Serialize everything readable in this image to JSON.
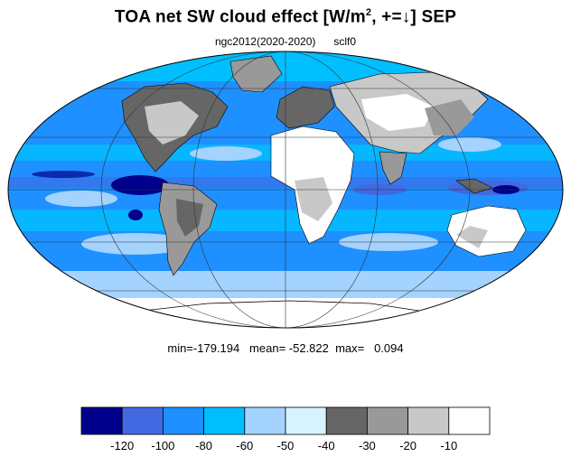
{
  "title": {
    "main": "TOA net SW cloud effect [W/m",
    "superscript": "2",
    "suffix": ", +=↓]  SEP"
  },
  "subtitle": {
    "case": "ngc2012(2020-2020)",
    "variable": "sclf0"
  },
  "stats": {
    "text": "min=-179.194   mean= -52.822  max=   0.094",
    "min": -179.194,
    "mean": -52.822,
    "max": 0.094
  },
  "map": {
    "projection": "mollweide",
    "ocean_color": "#1e90ff",
    "coastline_color": "#000000"
  },
  "colorbar": {
    "labels": [
      "-120",
      "-100",
      "-80",
      "-60",
      "-50",
      "-40",
      "-30",
      "-20",
      "-10"
    ],
    "colors": [
      "#00008b",
      "#4169e1",
      "#1e90ff",
      "#00bfff",
      "#a4d3ff",
      "#d6f4ff",
      "#666666",
      "#999999",
      "#c8c8c8",
      "#ffffff"
    ]
  }
}
